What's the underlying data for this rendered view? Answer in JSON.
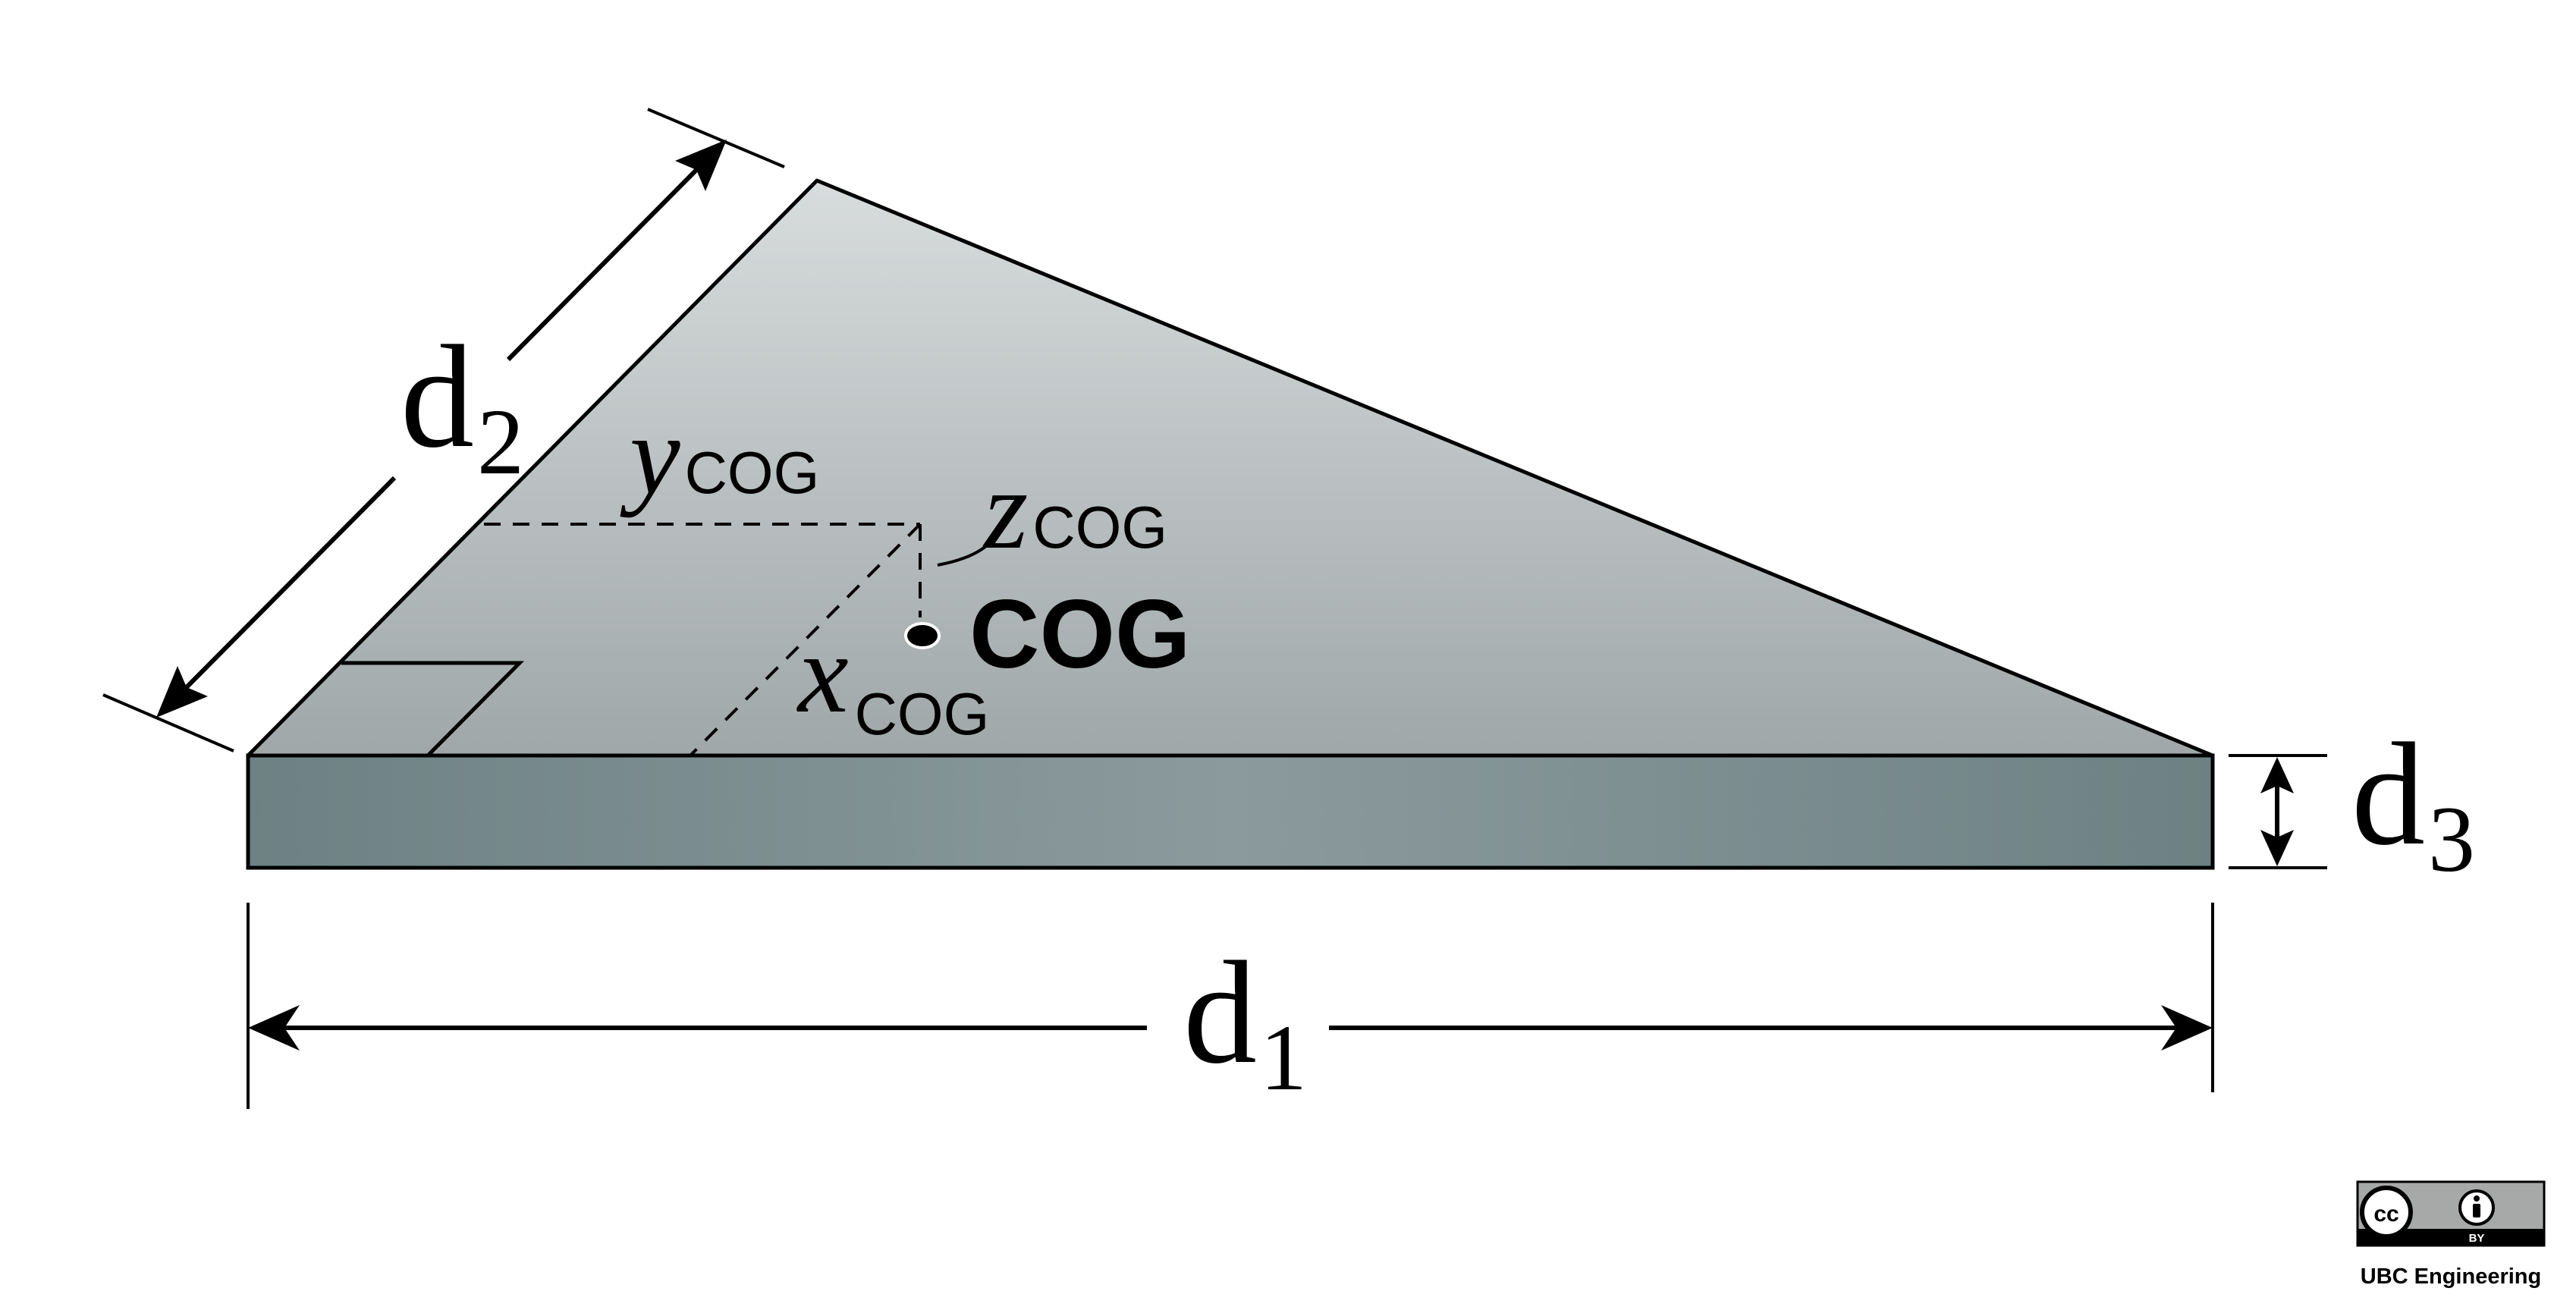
{
  "diagram": {
    "labels": {
      "d1": {
        "main": "d",
        "sub": "1"
      },
      "d2": {
        "main": "d",
        "sub": "2"
      },
      "d3": {
        "main": "d",
        "sub": "3"
      },
      "x_cog": {
        "main": "x",
        "sub": "COG"
      },
      "y_cog": {
        "main": "y",
        "sub": "COG"
      },
      "z_cog": {
        "main": "z",
        "sub": "COG"
      },
      "cog": "COG"
    },
    "colors": {
      "top_face_light": "#d8dcdd",
      "top_face_dark": "#9fa7a8",
      "side_face_dark": "#6d8184",
      "side_face_light": "#8b9a9d",
      "outline": "#000000"
    }
  },
  "license_badge": {
    "license_text": "BY",
    "organization": "UBC Engineering",
    "icons": [
      "cc-icon",
      "attribution-person-icon"
    ]
  }
}
